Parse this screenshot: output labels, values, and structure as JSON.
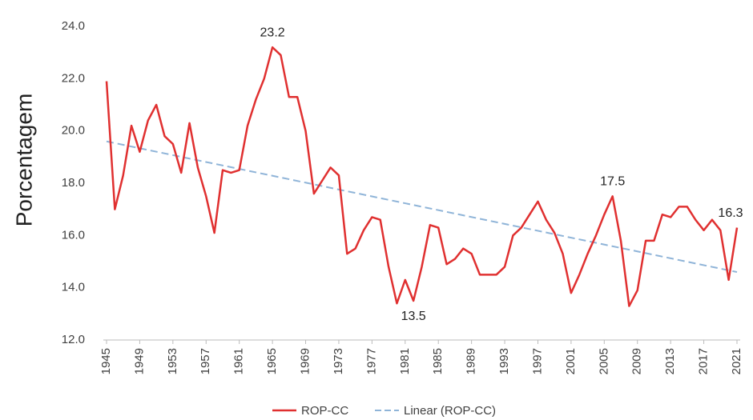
{
  "chart_data": {
    "type": "line",
    "y_label": "Porcentagem",
    "x": [
      1945,
      1946,
      1947,
      1948,
      1949,
      1950,
      1951,
      1952,
      1953,
      1954,
      1955,
      1956,
      1957,
      1958,
      1959,
      1960,
      1961,
      1962,
      1963,
      1964,
      1965,
      1966,
      1967,
      1968,
      1969,
      1970,
      1971,
      1972,
      1973,
      1974,
      1975,
      1976,
      1977,
      1978,
      1979,
      1980,
      1981,
      1982,
      1983,
      1984,
      1985,
      1986,
      1987,
      1988,
      1989,
      1990,
      1991,
      1992,
      1993,
      1994,
      1995,
      1996,
      1997,
      1998,
      1999,
      2000,
      2001,
      2002,
      2003,
      2004,
      2005,
      2006,
      2007,
      2008,
      2009,
      2010,
      2011,
      2012,
      2013,
      2014,
      2015,
      2016,
      2017,
      2018,
      2019,
      2020,
      2021
    ],
    "series": [
      {
        "name": "ROP-CC",
        "color": "#e03030",
        "values": [
          21.9,
          17.0,
          18.3,
          20.2,
          19.2,
          20.4,
          21.0,
          19.8,
          19.5,
          18.4,
          20.3,
          18.6,
          17.5,
          16.1,
          18.5,
          18.4,
          18.5,
          20.2,
          21.2,
          22.0,
          23.2,
          22.9,
          21.3,
          21.3,
          20.0,
          17.6,
          18.1,
          18.6,
          18.3,
          15.3,
          15.5,
          16.2,
          16.7,
          16.6,
          14.8,
          13.4,
          14.3,
          13.5,
          14.8,
          16.4,
          16.3,
          14.9,
          15.1,
          15.5,
          15.3,
          14.5,
          14.5,
          14.5,
          14.8,
          16.0,
          16.3,
          16.8,
          17.3,
          16.6,
          16.1,
          15.3,
          13.8,
          14.5,
          15.3,
          16.0,
          16.8,
          17.5,
          15.8,
          13.3,
          13.9,
          15.8,
          15.8,
          16.8,
          16.7,
          17.1,
          17.1,
          16.6,
          16.2,
          16.6,
          16.2,
          14.3,
          16.3
        ]
      }
    ],
    "trendline": {
      "name": "Linear (ROP-CC)",
      "color": "#8fb4d8",
      "x": [
        1945,
        2021
      ],
      "values": [
        19.6,
        14.6
      ]
    },
    "annotations": [
      {
        "x": 1965,
        "value": 23.2
      },
      {
        "x": 1982,
        "value": 13.5
      },
      {
        "x": 2006,
        "value": 17.5
      },
      {
        "x": 2021,
        "value": 16.3
      }
    ],
    "xlim": [
      1945,
      2021
    ],
    "xticks": [
      1945,
      1949,
      1953,
      1957,
      1961,
      1965,
      1969,
      1973,
      1977,
      1981,
      1985,
      1989,
      1993,
      1997,
      2001,
      2005,
      2009,
      2013,
      2017,
      2021
    ],
    "ylim": [
      12,
      24
    ],
    "yticks": [
      {
        "value": 12,
        "label": "12.0"
      },
      {
        "value": 14,
        "label": "14.0"
      },
      {
        "value": 16,
        "label": "16.0"
      },
      {
        "value": 18,
        "label": "18.0"
      },
      {
        "value": 20,
        "label": "20.0"
      },
      {
        "value": 22,
        "label": "22.0"
      },
      {
        "value": 24,
        "label": "24.0"
      }
    ],
    "grid": false
  }
}
